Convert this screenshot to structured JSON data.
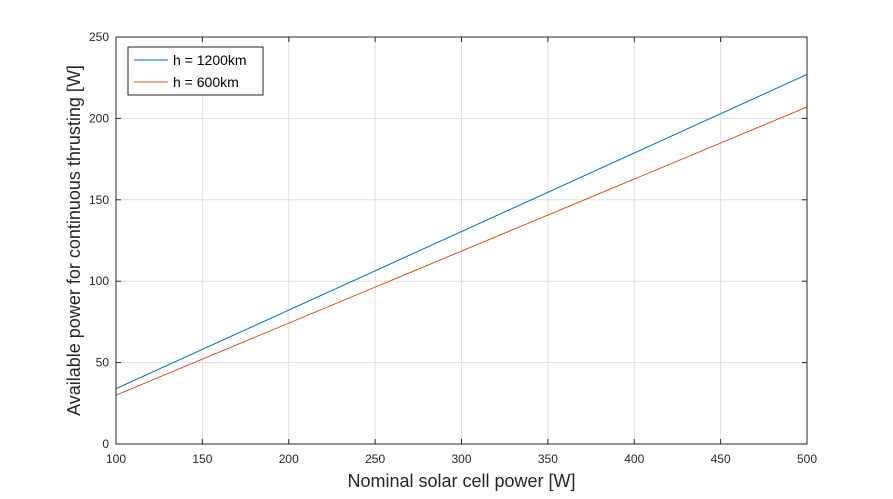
{
  "chart_data": {
    "type": "line",
    "xlabel": "Nominal solar cell power [W]",
    "ylabel": "Available power for continuous thrusting [W]",
    "xlim": [
      100,
      500
    ],
    "ylim": [
      0,
      250
    ],
    "xticks": [
      100,
      150,
      200,
      250,
      300,
      350,
      400,
      450,
      500
    ],
    "yticks": [
      0,
      50,
      100,
      150,
      200,
      250
    ],
    "grid": true,
    "legend_position": "top-left",
    "series": [
      {
        "name": "h = 1200km",
        "color": "#0072BD",
        "x": [
          100,
          500
        ],
        "y": [
          34,
          227
        ]
      },
      {
        "name": "h = 600km",
        "color": "#D95319",
        "x": [
          100,
          500
        ],
        "y": [
          30,
          207
        ]
      }
    ]
  }
}
